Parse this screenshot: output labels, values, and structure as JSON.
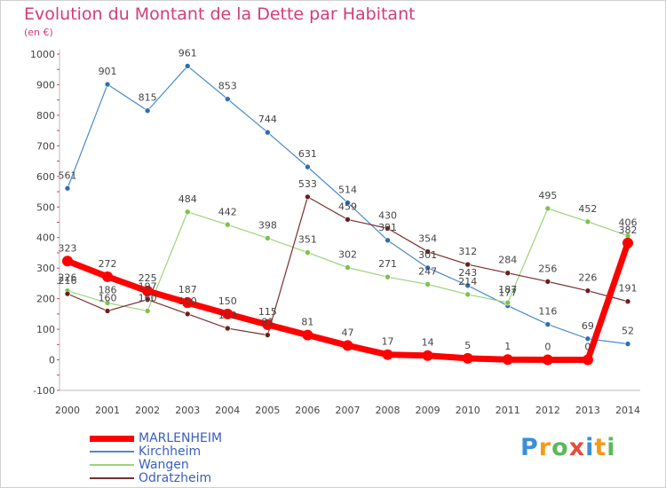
{
  "title": "Evolution du Montant de la Dette par Habitant",
  "subtitle": "(en €)",
  "logo": {
    "text": "Proxiti",
    "colors": [
      "#3a8fd8",
      "#f29a1a",
      "#5cb85c",
      "#e84c3d",
      "#3a8fd8",
      "#f29a1a",
      "#5cb85c"
    ]
  },
  "chart_data": {
    "type": "line",
    "x": [
      2000,
      2001,
      2002,
      2003,
      2004,
      2005,
      2006,
      2007,
      2008,
      2009,
      2010,
      2011,
      2012,
      2013,
      2014
    ],
    "ylim": [
      -100,
      1000
    ],
    "yticks": [
      -100,
      0,
      100,
      200,
      300,
      400,
      500,
      600,
      700,
      800,
      900,
      1000
    ],
    "grid": false,
    "legend_position": "bottom-left",
    "series": [
      {
        "name": "Kirchheim",
        "color": "#4a8ccb",
        "marker": "#2f6fb0",
        "width": 1.2,
        "marker_r": 3,
        "values": [
          561,
          901,
          815,
          961,
          853,
          744,
          631,
          514,
          391,
          301,
          243,
          177,
          116,
          69,
          52
        ]
      },
      {
        "name": "Wangen",
        "color": "#9dd37a",
        "marker": "#7cc24f",
        "width": 1.2,
        "marker_r": 3,
        "values": [
          226,
          186,
          160,
          484,
          442,
          398,
          351,
          302,
          271,
          247,
          214,
          187,
          495,
          452,
          406
        ]
      },
      {
        "name": "Odratzheim",
        "color": "#7a2e2e",
        "marker": "#6b1f1f",
        "width": 1.2,
        "marker_r": 3,
        "values": [
          216,
          160,
          197,
          150,
          103,
          81,
          533,
          459,
          430,
          354,
          312,
          284,
          256,
          226,
          191
        ]
      },
      {
        "name": "MARLENHEIM",
        "color": "#ff0000",
        "marker": "#ff0000",
        "width": 7,
        "marker_r": 6,
        "values": [
          323,
          272,
          225,
          187,
          150,
          115,
          81,
          47,
          17,
          14,
          5,
          1,
          0,
          0,
          382
        ]
      }
    ],
    "data_labels": [
      {
        "x": 2000,
        "text": "561",
        "y": 561
      },
      {
        "x": 2001,
        "text": "901",
        "y": 901
      },
      {
        "x": 2002,
        "text": "815",
        "y": 815
      },
      {
        "x": 2003,
        "text": "961",
        "y": 961
      },
      {
        "x": 2004,
        "text": "853",
        "y": 853
      },
      {
        "x": 2005,
        "text": "744",
        "y": 744
      },
      {
        "x": 2006,
        "text": "631",
        "y": 631
      },
      {
        "x": 2007,
        "text": "514",
        "y": 514
      },
      {
        "x": 2008,
        "text": "391",
        "y": 391
      },
      {
        "x": 2009,
        "text": "301",
        "y": 301
      },
      {
        "x": 2010,
        "text": "243",
        "y": 243
      },
      {
        "x": 2011,
        "text": "177",
        "y": 177
      },
      {
        "x": 2012,
        "text": "116",
        "y": 116
      },
      {
        "x": 2013,
        "text": "69",
        "y": 69
      },
      {
        "x": 2014,
        "text": "52",
        "y": 52
      },
      {
        "x": 2000,
        "text": "226",
        "y": 226
      },
      {
        "x": 2001,
        "text": "186",
        "y": 186
      },
      {
        "x": 2002,
        "text": "160",
        "y": 160
      },
      {
        "x": 2003,
        "text": "484",
        "y": 484
      },
      {
        "x": 2004,
        "text": "442",
        "y": 442
      },
      {
        "x": 2005,
        "text": "398",
        "y": 398
      },
      {
        "x": 2006,
        "text": "351",
        "y": 351
      },
      {
        "x": 2007,
        "text": "302",
        "y": 302
      },
      {
        "x": 2008,
        "text": "271",
        "y": 271
      },
      {
        "x": 2009,
        "text": "247",
        "y": 247
      },
      {
        "x": 2010,
        "text": "214",
        "y": 214
      },
      {
        "x": 2011,
        "text": "187",
        "y": 187
      },
      {
        "x": 2012,
        "text": "495",
        "y": 495
      },
      {
        "x": 2013,
        "text": "452",
        "y": 452
      },
      {
        "x": 2014,
        "text": "406",
        "y": 406
      },
      {
        "x": 2000,
        "text": "216",
        "y": 216
      },
      {
        "x": 2001,
        "text": "160",
        "y": 160
      },
      {
        "x": 2002,
        "text": "197",
        "y": 197
      },
      {
        "x": 2003,
        "text": "150",
        "y": 150
      },
      {
        "x": 2004,
        "text": "103",
        "y": 103
      },
      {
        "x": 2005,
        "text": "81",
        "y": 81
      },
      {
        "x": 2006,
        "text": "533",
        "y": 533
      },
      {
        "x": 2007,
        "text": "459",
        "y": 459
      },
      {
        "x": 2008,
        "text": "430",
        "y": 430
      },
      {
        "x": 2009,
        "text": "354",
        "y": 354
      },
      {
        "x": 2010,
        "text": "312",
        "y": 312
      },
      {
        "x": 2011,
        "text": "284",
        "y": 284
      },
      {
        "x": 2012,
        "text": "256",
        "y": 256
      },
      {
        "x": 2013,
        "text": "226",
        "y": 226
      },
      {
        "x": 2014,
        "text": "191",
        "y": 191
      },
      {
        "x": 2000,
        "text": "323",
        "y": 323
      },
      {
        "x": 2001,
        "text": "272",
        "y": 272
      },
      {
        "x": 2002,
        "text": "225",
        "y": 225
      },
      {
        "x": 2003,
        "text": "187",
        "y": 187
      },
      {
        "x": 2004,
        "text": "150",
        "y": 150
      },
      {
        "x": 2005,
        "text": "115",
        "y": 115
      },
      {
        "x": 2006,
        "text": "81",
        "y": 81
      },
      {
        "x": 2007,
        "text": "47",
        "y": 47
      },
      {
        "x": 2008,
        "text": "17",
        "y": 17
      },
      {
        "x": 2009,
        "text": "14",
        "y": 14
      },
      {
        "x": 2010,
        "text": "5",
        "y": 5
      },
      {
        "x": 2011,
        "text": "1",
        "y": 1
      },
      {
        "x": 2012,
        "text": "0",
        "y": 0
      },
      {
        "x": 2013,
        "text": "0",
        "y": 0
      },
      {
        "x": 2014,
        "text": "382",
        "y": 382
      }
    ],
    "legend": [
      {
        "name": "MARLENHEIM",
        "color": "#ff0000",
        "width": 7
      },
      {
        "name": "Kirchheim",
        "color": "#4a8ccb",
        "width": 1.5
      },
      {
        "name": "Wangen",
        "color": "#9dd37a",
        "width": 1.5
      },
      {
        "name": "Odratzheim",
        "color": "#7a2e2e",
        "width": 1.5
      }
    ]
  }
}
